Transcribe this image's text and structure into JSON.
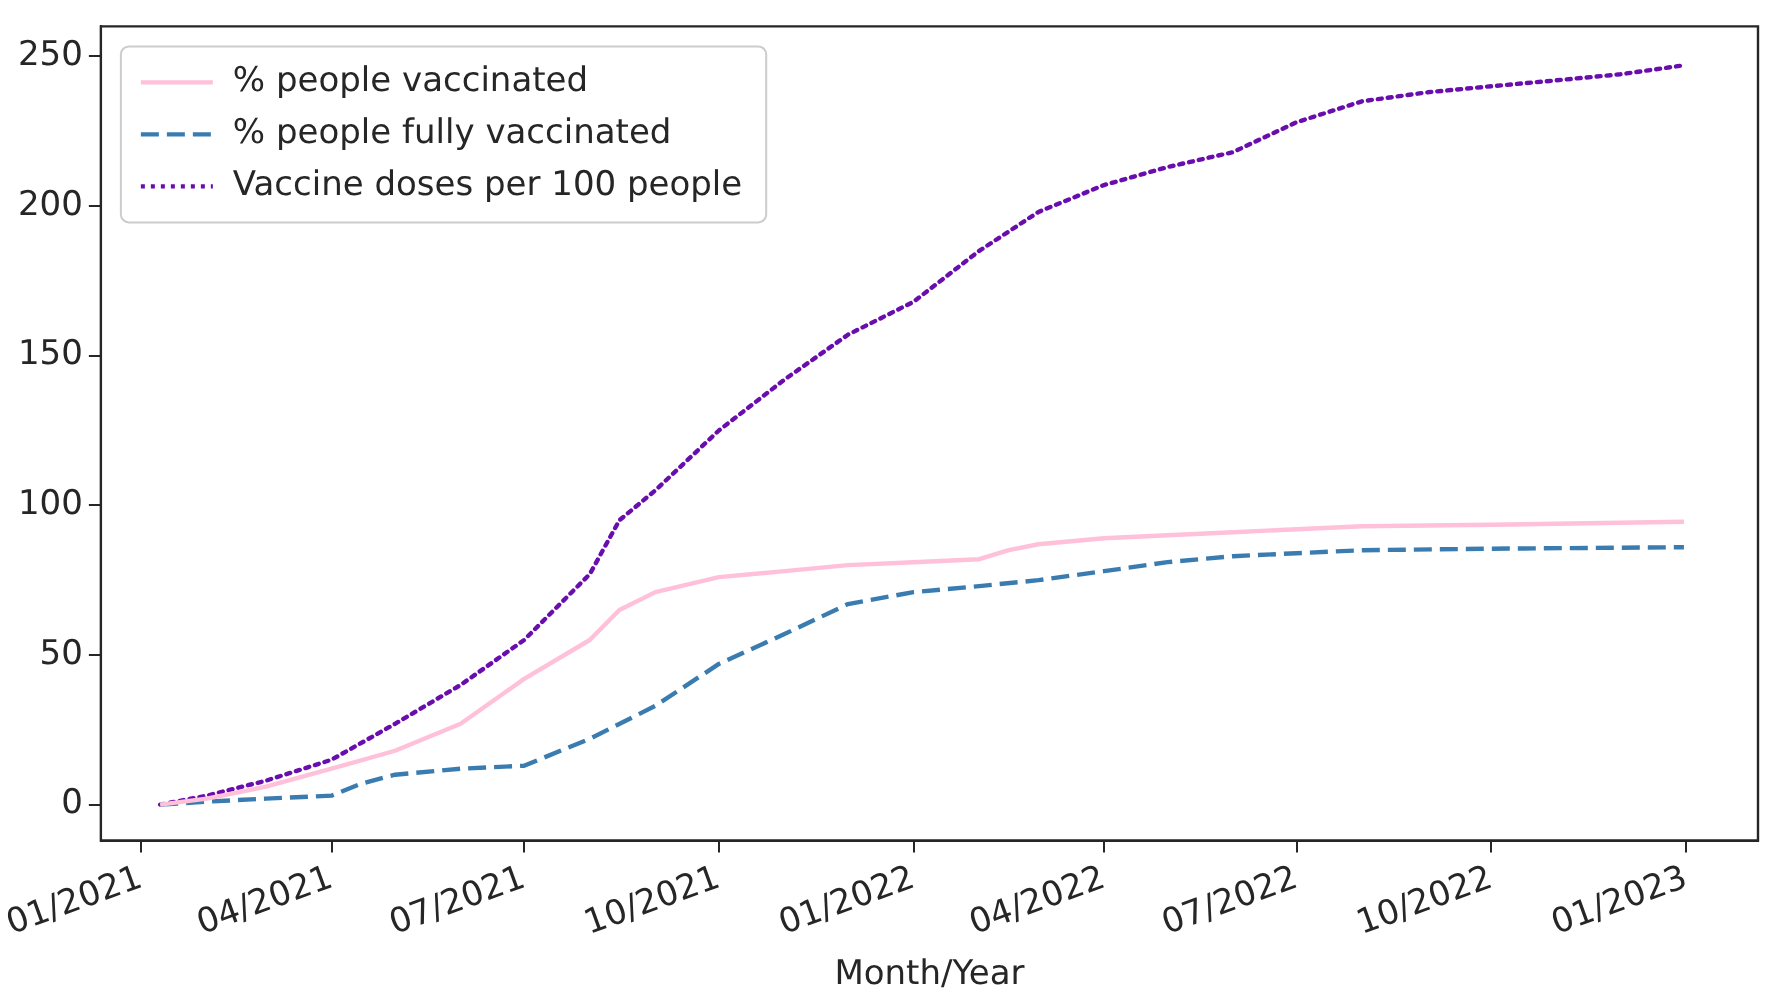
{
  "chart_data": {
    "type": "line",
    "xlabel": "Month/Year",
    "xlim": [
      "2020-12-13",
      "2023-02-04"
    ],
    "ylim": [
      -12,
      260
    ],
    "xticks": [
      {
        "value": "2021-01-01",
        "label": "01/2021"
      },
      {
        "value": "2021-04-01",
        "label": "04/2021"
      },
      {
        "value": "2021-07-01",
        "label": "07/2021"
      },
      {
        "value": "2021-10-01",
        "label": "10/2021"
      },
      {
        "value": "2022-01-01",
        "label": "01/2022"
      },
      {
        "value": "2022-04-01",
        "label": "04/2022"
      },
      {
        "value": "2022-07-01",
        "label": "07/2022"
      },
      {
        "value": "2022-10-01",
        "label": "10/2022"
      },
      {
        "value": "2023-01-01",
        "label": "01/2023"
      }
    ],
    "yticks": [
      0,
      50,
      100,
      150,
      200,
      250
    ],
    "grid": false,
    "legend": "top left",
    "marker": "none",
    "series": [
      {
        "name": "% people vaccinated",
        "color": "#ffc0d9",
        "line_style": "solid",
        "x": [
          "2021-01-10",
          "2021-02-01",
          "2021-03-01",
          "2021-04-01",
          "2021-05-01",
          "2021-06-01",
          "2021-07-01",
          "2021-08-01",
          "2021-08-15",
          "2021-09-01",
          "2021-10-01",
          "2021-11-01",
          "2021-12-01",
          "2022-01-01",
          "2022-02-01",
          "2022-02-15",
          "2022-03-01",
          "2022-04-01",
          "2022-05-01",
          "2022-06-01",
          "2022-07-01",
          "2022-08-01",
          "2022-10-01",
          "2022-12-31"
        ],
        "values": [
          0,
          2,
          6,
          12,
          18,
          27,
          42,
          55,
          65,
          71,
          76,
          78,
          80,
          81,
          82,
          85,
          87,
          89,
          90,
          91,
          92,
          93,
          93.5,
          94.5
        ]
      },
      {
        "name": "% people fully vaccinated",
        "color": "#3a7cb0",
        "line_style": "dashed",
        "x": [
          "2021-01-10",
          "2021-02-01",
          "2021-03-01",
          "2021-04-01",
          "2021-04-15",
          "2021-05-01",
          "2021-06-01",
          "2021-07-01",
          "2021-08-01",
          "2021-09-01",
          "2021-10-01",
          "2021-11-01",
          "2021-12-01",
          "2022-01-01",
          "2022-02-01",
          "2022-03-01",
          "2022-04-01",
          "2022-05-01",
          "2022-06-01",
          "2022-07-01",
          "2022-08-01",
          "2022-10-01",
          "2022-12-31"
        ],
        "values": [
          0,
          1,
          2,
          3,
          7,
          10,
          12,
          13,
          22,
          33,
          47,
          57,
          67,
          71,
          73,
          75,
          78,
          81,
          83,
          84,
          85,
          85.5,
          86
        ]
      },
      {
        "name": "Vaccine doses per 100 people",
        "color": "#6a0dad",
        "line_style": "dotted",
        "x": [
          "2021-01-10",
          "2021-02-01",
          "2021-03-01",
          "2021-04-01",
          "2021-05-01",
          "2021-06-01",
          "2021-07-01",
          "2021-08-01",
          "2021-08-15",
          "2021-09-01",
          "2021-10-01",
          "2021-11-01",
          "2021-12-01",
          "2022-01-01",
          "2022-02-01",
          "2022-03-01",
          "2022-04-01",
          "2022-05-01",
          "2022-06-01",
          "2022-07-01",
          "2022-08-01",
          "2022-09-01",
          "2022-10-01",
          "2022-11-01",
          "2022-12-01",
          "2022-12-31"
        ],
        "values": [
          0,
          3,
          8,
          15,
          27,
          40,
          55,
          77,
          95,
          105,
          125,
          142,
          157,
          168,
          185,
          198,
          207,
          213,
          218,
          228,
          235,
          238,
          240,
          242,
          244,
          247
        ]
      }
    ]
  }
}
